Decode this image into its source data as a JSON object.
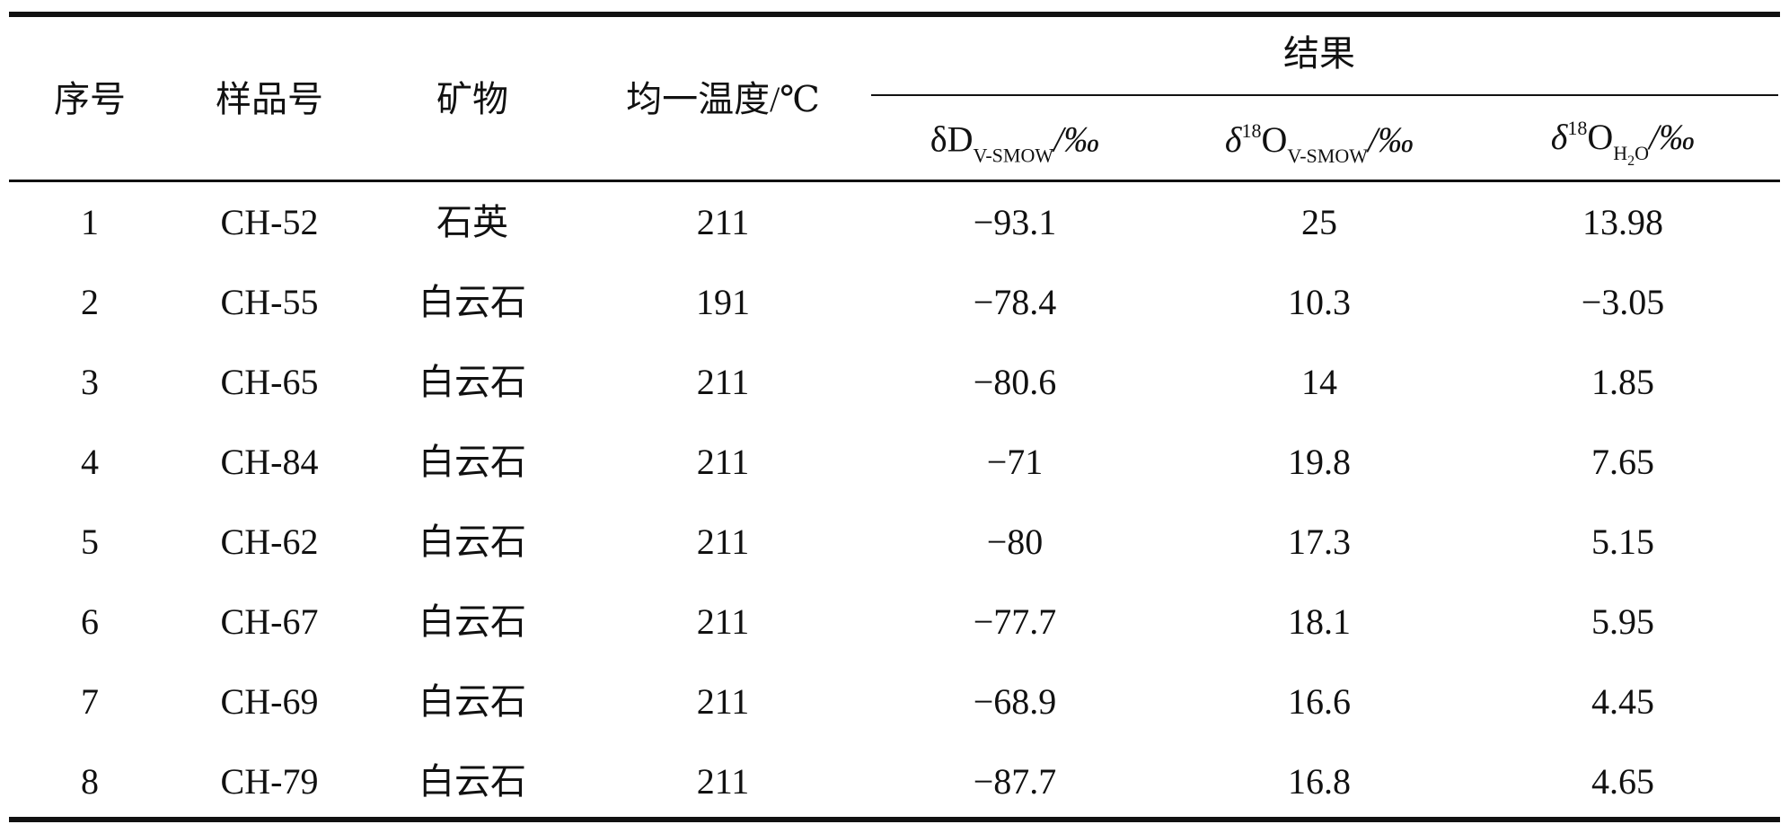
{
  "table": {
    "headers": [
      "序号",
      "样品号",
      "矿物",
      "均一温度/℃"
    ],
    "group": "结果",
    "subheaders": [
      {
        "base": "δD",
        "sub": "V-SMOW",
        "suffix": "/‰"
      },
      {
        "base": "δ",
        "sup": "18",
        "main": "O",
        "sub": "V-SMOW",
        "suffix": "/‰"
      },
      {
        "base": "δ",
        "sup": "18",
        "main": "O",
        "sub": "H",
        "sub_sub": "2",
        "sub_end": "O",
        "suffix": "/‰"
      }
    ],
    "rows": [
      [
        "1",
        "CH-52",
        "石英",
        "211",
        "−93.1",
        "25",
        "13.98"
      ],
      [
        "2",
        "CH-55",
        "白云石",
        "191",
        "−78.4",
        "10.3",
        "−3.05"
      ],
      [
        "3",
        "CH-65",
        "白云石",
        "211",
        "−80.6",
        "14",
        "1.85"
      ],
      [
        "4",
        "CH-84",
        "白云石",
        "211",
        "−71",
        "19.8",
        "7.65"
      ],
      [
        "5",
        "CH-62",
        "白云石",
        "211",
        "−80",
        "17.3",
        "5.15"
      ],
      [
        "6",
        "CH-67",
        "白云石",
        "211",
        "−77.7",
        "18.1",
        "5.95"
      ],
      [
        "7",
        "CH-69",
        "白云石",
        "211",
        "−68.9",
        "16.6",
        "4.45"
      ],
      [
        "8",
        "CH-79",
        "白云石",
        "211",
        "−87.7",
        "16.8",
        "4.65"
      ]
    ]
  }
}
